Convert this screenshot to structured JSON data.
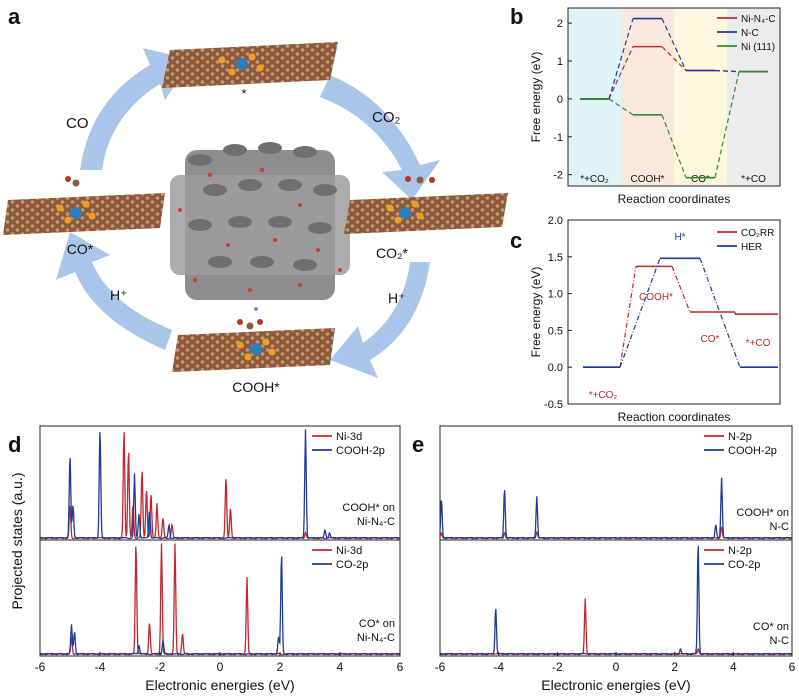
{
  "panels": {
    "a": {
      "letter": "a",
      "labels": {
        "top_star": "*",
        "co2_arrow": "CO₂",
        "co2_star": "CO₂*",
        "h_right": "H⁺",
        "cooh_star": "COOH*",
        "h_left": "H⁺",
        "co_star": "CO*",
        "co_arrow": "CO"
      }
    },
    "b": {
      "letter": "b",
      "xlabel": "Reaction coordinates",
      "ylabel": "Free energy (eV)",
      "stage_labels": [
        "*+CO₂",
        "COOH*",
        "CO*",
        "*+CO"
      ],
      "stage_colors": [
        "#dff4f6",
        "#fbe8dc",
        "#fdf7dd",
        "#ececec"
      ],
      "colors": {
        "ni_n4_c": "#c0282d",
        "n_c": "#1f3a9a",
        "ni_111": "#2e8b2e"
      }
    },
    "c": {
      "letter": "c",
      "xlabel": "Reaction coordinates",
      "ylabel": "Free energy (eV)",
      "annotations": [
        "*+CO₂",
        "COOH*",
        "H*",
        "CO*",
        "*+CO"
      ],
      "colors": {
        "co2rr": "#c0282d",
        "her": "#1f3a9a"
      }
    },
    "d": {
      "letter": "d",
      "xlabel": "Electronic energies (eV)",
      "ylabel": "Projected states (a.u.)",
      "top_text": [
        "COOH* on",
        "Ni-N₄-C"
      ],
      "bottom_text": [
        "CO* on",
        "Ni-N₄-C"
      ]
    },
    "e": {
      "letter": "e",
      "xlabel": "Electronic energies (eV)",
      "top_text": [
        "COOH* on",
        "N-C"
      ],
      "bottom_text": [
        "CO* on",
        "N-C"
      ]
    }
  },
  "chart_data": [
    {
      "id": "b",
      "type": "line",
      "title": "",
      "xlabel": "Reaction coordinates",
      "ylabel": "Free energy (eV)",
      "categories": [
        "*+CO₂",
        "COOH*",
        "CO*",
        "*+CO"
      ],
      "ylim": [
        -2.3,
        2.4
      ],
      "yticks": [
        -2,
        -1,
        0,
        1,
        2
      ],
      "legend_position": "top-right",
      "series": [
        {
          "name": "Ni-N₄-C",
          "values": [
            0.0,
            1.38,
            0.75,
            0.72
          ]
        },
        {
          "name": "N-C",
          "values": [
            0.0,
            2.12,
            0.75,
            0.72
          ]
        },
        {
          "name": "Ni (111)",
          "values": [
            0.0,
            -0.42,
            -2.08,
            0.72
          ]
        }
      ]
    },
    {
      "id": "c",
      "type": "line",
      "title": "",
      "xlabel": "Reaction coordinates",
      "ylabel": "Free energy (eV)",
      "ylim": [
        -0.5,
        2.0
      ],
      "yticks": [
        -0.5,
        0.0,
        0.5,
        1.0,
        1.5,
        2.0
      ],
      "legend_position": "top-right",
      "series": [
        {
          "name": "CO₂RR",
          "values": [
            0.0,
            1.37,
            0.75,
            0.72
          ]
        },
        {
          "name": "HER",
          "values": [
            0.0,
            1.48,
            0.0
          ]
        }
      ]
    },
    {
      "id": "d-top",
      "type": "line",
      "xlabel": "",
      "ylabel": "Projected states (a.u.)",
      "xlim": [
        -6,
        6
      ],
      "legend_position": "top-right",
      "series": [
        {
          "name": "Ni-3d",
          "peaks": [
            [
              -5.0,
              0.3
            ],
            [
              -3.2,
              1.0
            ],
            [
              -3.05,
              0.8
            ],
            [
              -2.9,
              0.3
            ],
            [
              -2.6,
              0.62
            ],
            [
              -2.45,
              0.45
            ],
            [
              -2.3,
              0.4
            ],
            [
              -2.1,
              0.32
            ],
            [
              -1.9,
              0.18
            ],
            [
              -1.6,
              0.12
            ],
            [
              0.2,
              0.55
            ],
            [
              0.35,
              0.28
            ],
            [
              2.85,
              0.05
            ]
          ]
        },
        {
          "name": "COOH-2p",
          "peaks": [
            [
              -5.0,
              0.75
            ],
            [
              -4.9,
              0.3
            ],
            [
              -4.0,
              1.0
            ],
            [
              -2.85,
              0.58
            ],
            [
              -2.7,
              0.22
            ],
            [
              -2.35,
              0.25
            ],
            [
              -1.7,
              0.12
            ],
            [
              2.85,
              1.0
            ],
            [
              3.5,
              0.07
            ],
            [
              3.65,
              0.05
            ]
          ]
        }
      ]
    },
    {
      "id": "d-bottom",
      "type": "line",
      "xlabel": "Electronic energies (eV)",
      "ylabel": "Projected states (a.u.)",
      "xlim": [
        -6,
        6
      ],
      "xticks": [
        -6,
        -4,
        -2,
        0,
        2,
        4,
        6
      ],
      "legend_position": "top-right",
      "series": [
        {
          "name": "Ni-3d",
          "peaks": [
            [
              -4.95,
              0.15
            ],
            [
              -2.8,
              1.0
            ],
            [
              -2.35,
              0.28
            ],
            [
              -1.95,
              1.0
            ],
            [
              -1.5,
              1.0
            ],
            [
              -1.25,
              0.18
            ],
            [
              0.9,
              0.68
            ]
          ]
        },
        {
          "name": "CO-2p",
          "peaks": [
            [
              -4.95,
              0.26
            ],
            [
              -4.85,
              0.2
            ],
            [
              -2.7,
              0.08
            ],
            [
              -1.9,
              0.12
            ],
            [
              2.05,
              0.9
            ],
            [
              1.95,
              0.15
            ]
          ]
        }
      ]
    },
    {
      "id": "e-top",
      "type": "line",
      "xlabel": "",
      "xlim": [
        -6,
        6
      ],
      "legend_position": "top-right",
      "series": [
        {
          "name": "N-2p",
          "peaks": [
            [
              -5.95,
              0.05
            ],
            [
              -3.8,
              0.05
            ],
            [
              -2.7,
              0.05
            ],
            [
              3.6,
              0.1
            ]
          ]
        },
        {
          "name": "COOH-2p",
          "peaks": [
            [
              -5.95,
              0.35
            ],
            [
              -3.8,
              0.45
            ],
            [
              -2.7,
              0.38
            ],
            [
              3.6,
              0.55
            ],
            [
              3.4,
              0.12
            ]
          ]
        }
      ]
    },
    {
      "id": "e-bottom",
      "type": "line",
      "xlabel": "Electronic energies (eV)",
      "xlim": [
        -6,
        6
      ],
      "xticks": [
        -6,
        -4,
        -2,
        0,
        2,
        4,
        6
      ],
      "legend_position": "top-right",
      "series": [
        {
          "name": "N-2p",
          "peaks": [
            [
              -1.05,
              0.5
            ],
            [
              2.8,
              0.05
            ]
          ]
        },
        {
          "name": "CO-2p",
          "peaks": [
            [
              -4.1,
              0.42
            ],
            [
              2.8,
              1.0
            ],
            [
              2.2,
              0.05
            ]
          ]
        }
      ]
    }
  ]
}
